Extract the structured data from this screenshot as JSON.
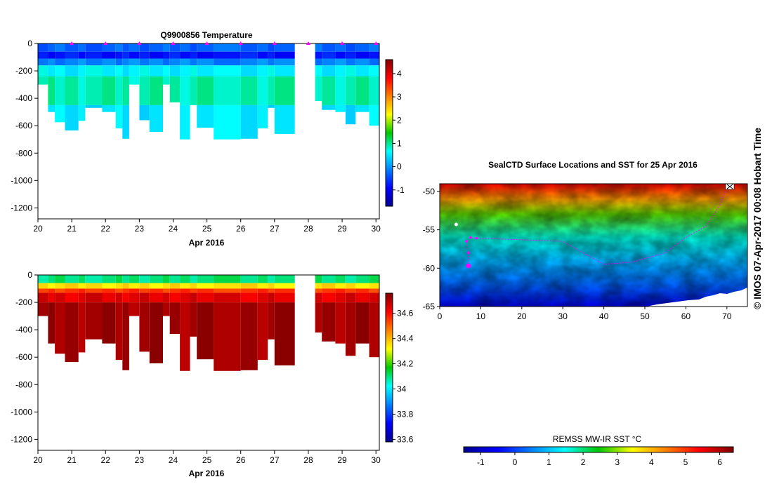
{
  "credit": "© IMOS 07-Apr-2017 00:08 Hobart Time",
  "colors": {
    "profile_marker": "#ff00ff",
    "land_fill": "#ffffff",
    "axis": "#000000"
  },
  "chart_data": [
    {
      "id": "temperature-section",
      "type": "heatmap",
      "title": "Q9900856  Temperature",
      "xlabel": "Apr 2016",
      "ylabel": "",
      "xlim": [
        20,
        30.1
      ],
      "ylim": [
        -1280,
        0
      ],
      "xticks": [
        "20",
        "21",
        "22",
        "23",
        "24",
        "25",
        "26",
        "27",
        "28",
        "29",
        "30"
      ],
      "yticks": [
        "0",
        "-200",
        "-400",
        "-600",
        "-800",
        "-1000",
        "-1200"
      ],
      "colorbar": {
        "min": -1.7,
        "max": 4.6,
        "ticks": [
          "-1",
          "0",
          "1",
          "2",
          "3",
          "4"
        ]
      },
      "profile_markers": [
        21,
        22,
        23,
        24,
        25,
        26,
        27,
        28,
        29,
        30
      ],
      "gap": [
        27.6,
        28.2
      ],
      "profiles": [
        {
          "start": 20.0,
          "end": 20.3,
          "max_depth": 300
        },
        {
          "start": 20.3,
          "end": 20.5,
          "max_depth": 500
        },
        {
          "start": 20.5,
          "end": 20.8,
          "max_depth": 575
        },
        {
          "start": 20.8,
          "end": 21.2,
          "max_depth": 635
        },
        {
          "start": 21.2,
          "end": 21.4,
          "max_depth": 565
        },
        {
          "start": 21.4,
          "end": 21.9,
          "max_depth": 470
        },
        {
          "start": 21.9,
          "end": 22.3,
          "max_depth": 500
        },
        {
          "start": 22.3,
          "end": 22.5,
          "max_depth": 620
        },
        {
          "start": 22.5,
          "end": 22.7,
          "max_depth": 695
        },
        {
          "start": 22.7,
          "end": 23.0,
          "max_depth": 300
        },
        {
          "start": 23.0,
          "end": 23.3,
          "max_depth": 560
        },
        {
          "start": 23.3,
          "end": 23.7,
          "max_depth": 645
        },
        {
          "start": 23.7,
          "end": 23.9,
          "max_depth": 300
        },
        {
          "start": 23.9,
          "end": 24.2,
          "max_depth": 430
        },
        {
          "start": 24.2,
          "end": 24.5,
          "max_depth": 700
        },
        {
          "start": 24.5,
          "end": 24.7,
          "max_depth": 450
        },
        {
          "start": 24.7,
          "end": 25.2,
          "max_depth": 615
        },
        {
          "start": 25.2,
          "end": 26.0,
          "max_depth": 700
        },
        {
          "start": 26.0,
          "end": 26.5,
          "max_depth": 695
        },
        {
          "start": 26.5,
          "end": 26.8,
          "max_depth": 620
        },
        {
          "start": 26.8,
          "end": 27.0,
          "max_depth": 470
        },
        {
          "start": 27.0,
          "end": 27.6,
          "max_depth": 660
        },
        {
          "start": 28.2,
          "end": 28.4,
          "max_depth": 420
        },
        {
          "start": 28.4,
          "end": 28.8,
          "max_depth": 485
        },
        {
          "start": 28.8,
          "end": 29.1,
          "max_depth": 500
        },
        {
          "start": 29.1,
          "end": 29.4,
          "max_depth": 590
        },
        {
          "start": 29.4,
          "end": 29.8,
          "max_depth": 500
        },
        {
          "start": 29.8,
          "end": 30.1,
          "max_depth": 600
        }
      ],
      "layers": [
        {
          "from": 0,
          "to": 60,
          "value": -0.3
        },
        {
          "from": 60,
          "to": 110,
          "value": -0.8
        },
        {
          "from": 110,
          "to": 160,
          "value": -0.1
        },
        {
          "from": 160,
          "to": 240,
          "value": 0.6
        },
        {
          "from": 240,
          "to": 450,
          "value": 0.9
        },
        {
          "from": 450,
          "to": 800,
          "value": 0.5
        }
      ]
    },
    {
      "id": "salinity-section",
      "type": "heatmap",
      "title": "",
      "xlabel": "Apr 2016",
      "ylabel": "",
      "xlim": [
        20,
        30.1
      ],
      "ylim": [
        -1280,
        0
      ],
      "xticks": [
        "20",
        "21",
        "22",
        "23",
        "24",
        "25",
        "26",
        "27",
        "28",
        "29",
        "30"
      ],
      "yticks": [
        "0",
        "-200",
        "-400",
        "-600",
        "-800",
        "-1000",
        "-1200"
      ],
      "colorbar": {
        "min": 33.58,
        "max": 34.76,
        "ticks": [
          "33.6",
          "33.8",
          "34",
          "34.2",
          "34.4",
          "34.6"
        ]
      },
      "gap": [
        27.6,
        28.2
      ],
      "profiles": [
        {
          "start": 20.0,
          "end": 20.3,
          "max_depth": 300
        },
        {
          "start": 20.3,
          "end": 20.5,
          "max_depth": 500
        },
        {
          "start": 20.5,
          "end": 20.8,
          "max_depth": 575
        },
        {
          "start": 20.8,
          "end": 21.2,
          "max_depth": 635
        },
        {
          "start": 21.2,
          "end": 21.4,
          "max_depth": 565
        },
        {
          "start": 21.4,
          "end": 21.9,
          "max_depth": 470
        },
        {
          "start": 21.9,
          "end": 22.3,
          "max_depth": 500
        },
        {
          "start": 22.3,
          "end": 22.5,
          "max_depth": 620
        },
        {
          "start": 22.5,
          "end": 22.7,
          "max_depth": 695
        },
        {
          "start": 22.7,
          "end": 23.0,
          "max_depth": 300
        },
        {
          "start": 23.0,
          "end": 23.3,
          "max_depth": 560
        },
        {
          "start": 23.3,
          "end": 23.7,
          "max_depth": 645
        },
        {
          "start": 23.7,
          "end": 23.9,
          "max_depth": 300
        },
        {
          "start": 23.9,
          "end": 24.2,
          "max_depth": 430
        },
        {
          "start": 24.2,
          "end": 24.5,
          "max_depth": 700
        },
        {
          "start": 24.5,
          "end": 24.7,
          "max_depth": 450
        },
        {
          "start": 24.7,
          "end": 25.2,
          "max_depth": 615
        },
        {
          "start": 25.2,
          "end": 26.0,
          "max_depth": 700
        },
        {
          "start": 26.0,
          "end": 26.5,
          "max_depth": 695
        },
        {
          "start": 26.5,
          "end": 26.8,
          "max_depth": 620
        },
        {
          "start": 26.8,
          "end": 27.0,
          "max_depth": 470
        },
        {
          "start": 27.0,
          "end": 27.6,
          "max_depth": 660
        },
        {
          "start": 28.2,
          "end": 28.4,
          "max_depth": 420
        },
        {
          "start": 28.4,
          "end": 28.8,
          "max_depth": 485
        },
        {
          "start": 28.8,
          "end": 29.1,
          "max_depth": 500
        },
        {
          "start": 29.1,
          "end": 29.4,
          "max_depth": 590
        },
        {
          "start": 29.4,
          "end": 29.8,
          "max_depth": 500
        },
        {
          "start": 29.8,
          "end": 30.1,
          "max_depth": 600
        }
      ],
      "layers": [
        {
          "from": 0,
          "to": 60,
          "value": 34.1
        },
        {
          "from": 60,
          "to": 100,
          "value": 34.35
        },
        {
          "from": 100,
          "to": 130,
          "value": 34.55
        },
        {
          "from": 130,
          "to": 200,
          "value": 34.65
        },
        {
          "from": 200,
          "to": 800,
          "value": 34.72
        }
      ]
    },
    {
      "id": "sst-map",
      "type": "heatmap",
      "title": "SealCTD Surface Locations and SST for 25 Apr 2016",
      "xlabel": "",
      "ylabel": "",
      "xlim": [
        0,
        75
      ],
      "ylim": [
        -65,
        -49
      ],
      "xticks": [
        "0",
        "10",
        "20",
        "30",
        "40",
        "50",
        "60",
        "70"
      ],
      "yticks": [
        "-50",
        "-55",
        "-60",
        "-65"
      ],
      "colorbar": {
        "label": "REMSS MW-IR SST °C",
        "min": -1.5,
        "max": 6.4,
        "ticks": [
          "-1",
          "0",
          "1",
          "2",
          "3",
          "4",
          "5",
          "6"
        ]
      },
      "sst_gradient": [
        {
          "lat": -49,
          "value": 5.5
        },
        {
          "lat": -51,
          "value": 4.2
        },
        {
          "lat": -53,
          "value": 2.8
        },
        {
          "lat": -56,
          "value": 1.6
        },
        {
          "lat": -59,
          "value": 0.9
        },
        {
          "lat": -62,
          "value": 0.3
        },
        {
          "lat": -65,
          "value": -0.8
        }
      ],
      "track": [
        {
          "lon": 7.0,
          "lat": -59.7
        },
        {
          "lon": 7.0,
          "lat": -58.0
        },
        {
          "lon": 6.5,
          "lat": -56.5
        },
        {
          "lon": 7.5,
          "lat": -56.0
        },
        {
          "lon": 9.0,
          "lat": -56.1
        },
        {
          "lon": 20,
          "lat": -56.3
        },
        {
          "lon": 30,
          "lat": -56.5
        },
        {
          "lon": 35,
          "lat": -58.0
        },
        {
          "lon": 40,
          "lat": -59.5
        },
        {
          "lon": 47,
          "lat": -59.2
        },
        {
          "lon": 55,
          "lat": -58.0
        },
        {
          "lon": 60,
          "lat": -56.0
        },
        {
          "lon": 65,
          "lat": -54.5
        },
        {
          "lon": 68,
          "lat": -52.0
        },
        {
          "lon": 70,
          "lat": -49.7
        }
      ],
      "current_position": {
        "lon": 7.0,
        "lat": -59.7
      },
      "reference_position": {
        "lon": 4.0,
        "lat": -54.3
      }
    }
  ]
}
